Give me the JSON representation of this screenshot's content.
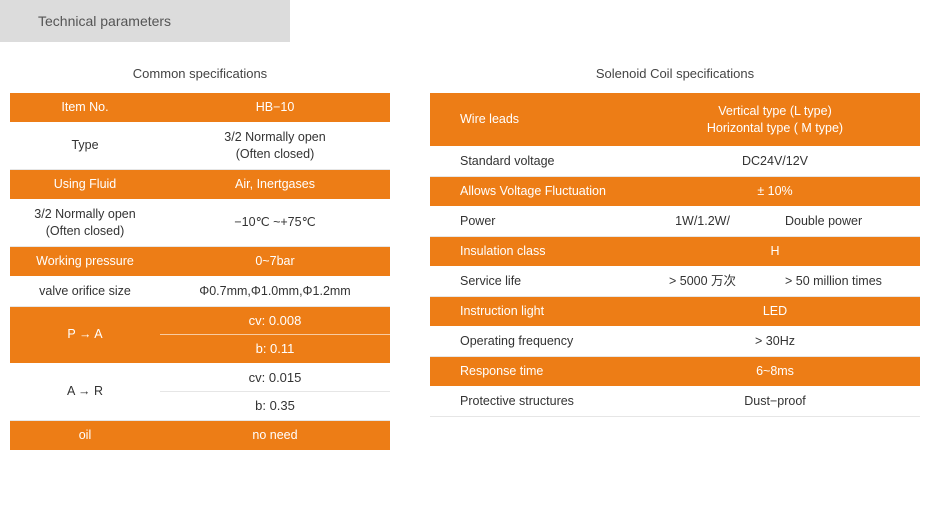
{
  "colors": {
    "headerBg": "#dcdcdc",
    "orange": "#ed7d16",
    "text": "#333333",
    "textLight": "#555555",
    "white": "#ffffff",
    "divider": "#e6e6e6"
  },
  "header": {
    "title": "Technical parameters"
  },
  "left": {
    "title": "Common specifications",
    "rows": [
      {
        "style": "orange",
        "label": "Item No.",
        "value": "HB−10"
      },
      {
        "style": "white",
        "label": "Type",
        "value": "3/2 Normally open\n(Often closed)"
      },
      {
        "style": "orange",
        "label": "Using Fluid",
        "value": "Air, Inertgases"
      },
      {
        "style": "white",
        "label": "3/2 Normally open\n(Often closed)",
        "value": "−10℃ ~+75℃"
      },
      {
        "style": "orange",
        "label": "Working pressure",
        "value": "0~7bar"
      },
      {
        "style": "white",
        "label": "valve orifice size",
        "value": "Φ0.7mm,Φ1.0mm,Φ1.2mm"
      },
      {
        "style": "orange",
        "label": "P → A",
        "sub": [
          "cv: 0.008",
          "b: 0.11"
        ]
      },
      {
        "style": "white",
        "label": "A → R",
        "sub": [
          "cv: 0.015",
          "b: 0.35"
        ]
      },
      {
        "style": "orange",
        "label": "oil",
        "value": "no need"
      }
    ]
  },
  "right": {
    "title": "Solenoid Coil specifications",
    "rows": [
      {
        "style": "orange",
        "label": "Wire leads",
        "value": "Vertical type (L type)\nHorizontal type ( M type)",
        "tall": true
      },
      {
        "style": "white",
        "label": "Standard voltage",
        "value": "DC24V/12V"
      },
      {
        "style": "orange",
        "label": "Allows Voltage Fluctuation",
        "value": "± 10%"
      },
      {
        "style": "white",
        "label": "Power",
        "value": "1W/1.2W/",
        "value2": "Double power"
      },
      {
        "style": "orange",
        "label": "Insulation class",
        "value": "H"
      },
      {
        "style": "white",
        "label": "Service life",
        "value": "> 5000 万次",
        "value2": "> 50 million times"
      },
      {
        "style": "orange",
        "label": "Instruction light",
        "value": "LED"
      },
      {
        "style": "white",
        "label": "Operating frequency",
        "value": "> 30Hz"
      },
      {
        "style": "orange",
        "label": "Response time",
        "value": "6~8ms"
      },
      {
        "style": "white",
        "label": "Protective structures",
        "value": "Dust−proof"
      }
    ]
  }
}
